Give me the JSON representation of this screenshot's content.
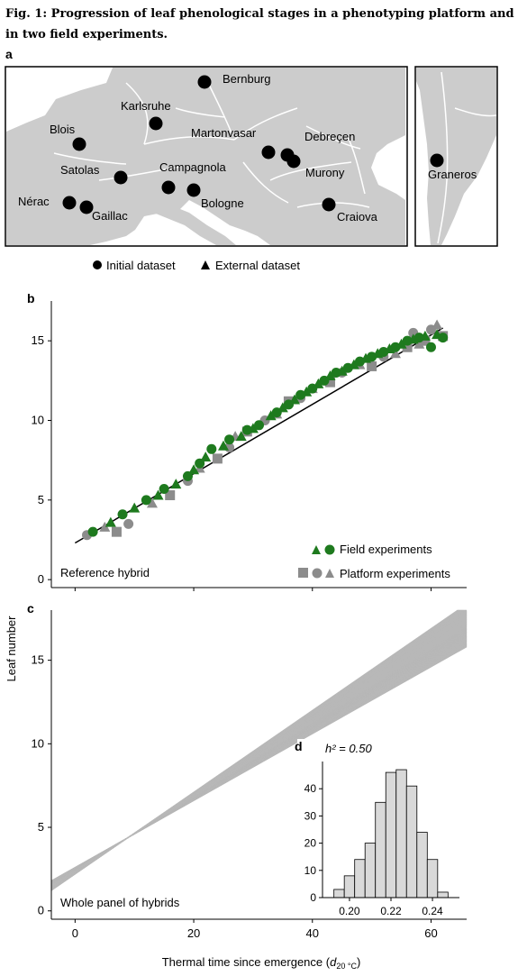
{
  "caption": "Fig. 1: Progression of leaf phenological stages in a phenotyping platform and in two field experiments.",
  "panel_letters": {
    "a": "a",
    "b": "b",
    "c": "c",
    "d": "d"
  },
  "map": {
    "sites": [
      "Bernburg",
      "Karlsruhe",
      "Blois",
      "Martonvasar",
      "Debreçen",
      "Satolas",
      "Campagnola",
      "Murony",
      "Nérac",
      "Gaillac",
      "Bologne",
      "Craiova",
      "Graneros"
    ],
    "legend": {
      "initial": "Initial dataset",
      "external": "External dataset"
    },
    "colors": {
      "land": "#cccccc",
      "borders": "#ffffff",
      "sea": "#ffffff",
      "marker": "#000000"
    }
  },
  "panel_b": {
    "corner_label": "Reference hybrid",
    "legend_field": "Field experiments",
    "legend_platform": "Platform experiments",
    "colors": {
      "field": "#1e7a1e",
      "platform": "#8c8c8c",
      "fit": "#000000"
    }
  },
  "panel_c": {
    "corner_label": "Whole panel of hybrids",
    "ylabel": "Leaf number",
    "xlabel_main": "Thermal time since emergence (",
    "xlabel_d": "d",
    "xlabel_sub": "20 °C",
    "xlabel_end": ")"
  },
  "inset_d": {
    "annotation": "h² = 0.50"
  },
  "chart_data": [
    {
      "type": "scatter",
      "title": "",
      "xlabel": "",
      "ylabel": "Leaf number",
      "xlim": [
        -4,
        66
      ],
      "ylim": [
        -0.5,
        17.5
      ],
      "yticks": [
        0,
        5,
        10,
        15
      ],
      "fit_line": {
        "x": [
          0,
          62
        ],
        "y": [
          2.3,
          15.8
        ]
      },
      "series": [
        {
          "name": "Field experiments",
          "color": "#1e7a1e",
          "x": [
            3,
            6,
            8,
            10,
            12,
            14,
            15,
            17,
            19,
            20,
            21,
            22,
            23,
            25,
            26,
            28,
            29,
            30,
            31,
            33,
            34,
            35,
            36,
            37,
            38,
            39,
            40,
            41,
            42,
            43,
            44,
            45,
            46,
            47,
            48,
            49,
            50,
            51,
            52,
            53,
            54,
            55,
            56,
            57,
            58,
            59,
            60,
            61,
            62
          ],
          "y": [
            3.0,
            3.6,
            4.1,
            4.5,
            5.0,
            5.3,
            5.7,
            6.0,
            6.5,
            6.9,
            7.3,
            7.7,
            8.2,
            8.4,
            8.8,
            9.0,
            9.4,
            9.5,
            9.7,
            10.3,
            10.5,
            10.8,
            11.0,
            11.3,
            11.6,
            11.8,
            12.0,
            12.3,
            12.5,
            12.8,
            13.0,
            13.1,
            13.3,
            13.5,
            13.7,
            13.9,
            14.0,
            14.2,
            14.3,
            14.5,
            14.6,
            14.8,
            15.0,
            15.1,
            15.2,
            15.3,
            14.6,
            15.4,
            15.2
          ]
        },
        {
          "name": "Platform experiments",
          "color": "#8c8c8c",
          "x": [
            2,
            5,
            7,
            9,
            13,
            16,
            19,
            21,
            24,
            26,
            27,
            29,
            32,
            34,
            36,
            38,
            40,
            43,
            45,
            48,
            50,
            52,
            54,
            56,
            57,
            58,
            59,
            60,
            61,
            62
          ],
          "y": [
            2.8,
            3.3,
            3.0,
            3.5,
            4.8,
            5.3,
            6.2,
            7.0,
            7.6,
            8.3,
            9.0,
            9.3,
            10.0,
            10.4,
            11.2,
            11.4,
            12.0,
            12.4,
            13.0,
            13.5,
            13.4,
            14.0,
            14.2,
            14.6,
            15.5,
            14.8,
            15.0,
            15.7,
            16.0,
            15.3
          ]
        }
      ]
    },
    {
      "type": "line",
      "title": "",
      "xlabel": "Thermal time since emergence (d20 °C)",
      "ylabel": "Leaf number",
      "xlim": [
        -4,
        66
      ],
      "ylim": [
        -0.5,
        18
      ],
      "xticks": [
        0,
        20,
        40,
        60
      ],
      "yticks": [
        0,
        5,
        10,
        15
      ],
      "intercept_range": [
        2.2,
        2.6
      ],
      "slope_range": [
        0.2,
        0.245
      ],
      "series_count": 150
    },
    {
      "type": "bar",
      "title": "",
      "annotation": "h² = 0.50",
      "bin_centers": [
        0.195,
        0.2,
        0.205,
        0.21,
        0.215,
        0.22,
        0.225,
        0.23,
        0.235,
        0.24,
        0.245
      ],
      "values": [
        3,
        8,
        14,
        20,
        35,
        46,
        47,
        41,
        24,
        14,
        2
      ],
      "xticks": [
        0.2,
        0.22,
        0.24
      ],
      "yticks": [
        0,
        10,
        20,
        30,
        40
      ],
      "xlim": [
        0.187,
        0.253
      ],
      "ylim": [
        0,
        50
      ]
    }
  ]
}
